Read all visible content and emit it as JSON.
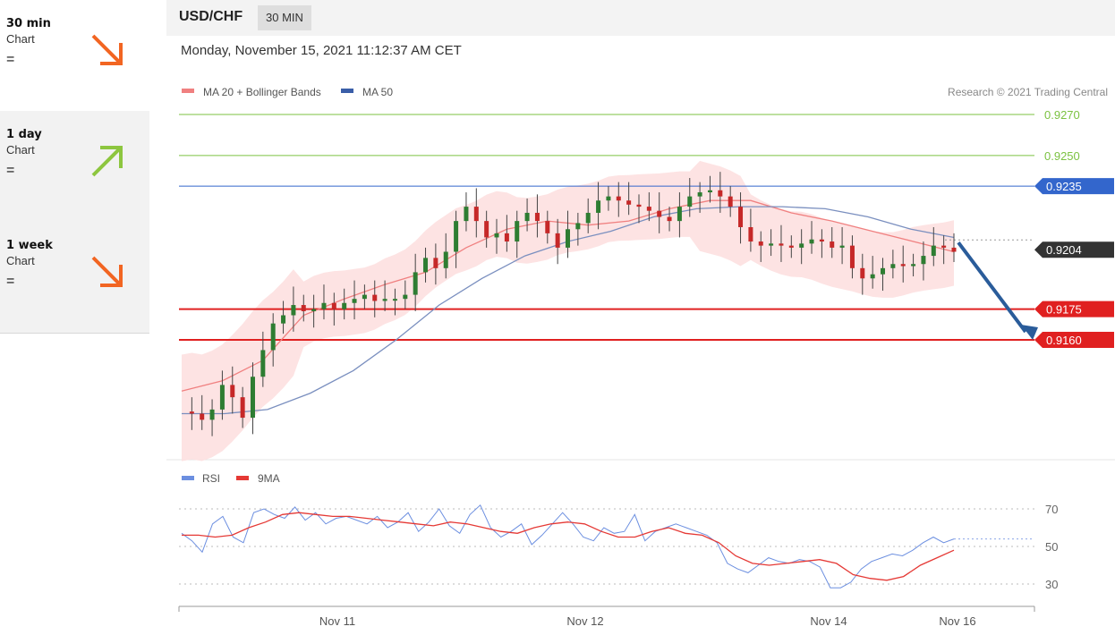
{
  "sidebar": {
    "items": [
      {
        "period": "30 min",
        "label": "Chart",
        "status": "=",
        "arrow": "down",
        "color": "#f26522"
      },
      {
        "period": "1 day",
        "label": "Chart",
        "status": "=",
        "arrow": "up",
        "color": "#8dc63f"
      },
      {
        "period": "1 week",
        "label": "Chart",
        "status": "=",
        "arrow": "down",
        "color": "#f26522"
      }
    ]
  },
  "header": {
    "pair": "USD/CHF",
    "timeframe": "30 MIN"
  },
  "datetime": "Monday, November 15, 2021 11:12:37 AM CET",
  "legend": {
    "item1": "MA 20 + Bollinger Bands",
    "item2": "MA 50",
    "copyright": "Research © 2021 Trading Central"
  },
  "rsi_legend": {
    "item1": "RSI",
    "item2": "9MA"
  },
  "colors": {
    "ma20": "#f08080",
    "bands": "#fde0e0",
    "ma50": "#7a8fbf",
    "bull": "#2e7d32",
    "bear": "#c62828",
    "rsi": "#6c8fe0",
    "rsi_ma": "#e53935",
    "resistance": "#7cc242",
    "pivot": "#3366cc",
    "support": "#e02020",
    "current": "#333333",
    "projection": "#2a5c9a"
  },
  "chart_data": [
    {
      "type": "candlestick",
      "title": "USD/CHF",
      "ylim": [
        0.911,
        0.9285
      ],
      "x_ticks": [
        "Nov 11",
        "Nov 12",
        "Nov 14",
        "Nov 16"
      ],
      "series": [
        {
          "name": "MA 20 + Bollinger Bands",
          "values": [
            0.9135,
            0.914,
            0.915,
            0.9172,
            0.918,
            0.9187,
            0.9193,
            0.9205,
            0.9214,
            0.9218,
            0.9216,
            0.9218,
            0.9224,
            0.9228,
            0.9228,
            0.9222,
            0.9218,
            0.9213,
            0.9208,
            0.9203
          ]
        },
        {
          "name": "MA 50",
          "values": [
            0.9124,
            0.9124,
            0.9126,
            0.9134,
            0.9145,
            0.916,
            0.9177,
            0.919,
            0.9201,
            0.9208,
            0.9213,
            0.922,
            0.9224,
            0.9225,
            0.9225,
            0.9224,
            0.922,
            0.9214,
            0.921
          ]
        }
      ],
      "levels": [
        {
          "label": "0.9270",
          "value": 0.927,
          "type": "resistance"
        },
        {
          "label": "0.9250",
          "value": 0.925,
          "type": "resistance"
        },
        {
          "label": "0.9235",
          "value": 0.9235,
          "type": "pivot"
        },
        {
          "label": "0.9204",
          "value": 0.9204,
          "type": "current"
        },
        {
          "label": "0.9175",
          "value": 0.9175,
          "type": "support"
        },
        {
          "label": "0.9160",
          "value": 0.916,
          "type": "support"
        }
      ],
      "price_path": [
        0.9125,
        0.9124,
        0.9121,
        0.9126,
        0.9138,
        0.9132,
        0.9122,
        0.9142,
        0.9155,
        0.9168,
        0.9172,
        0.9177,
        0.9174,
        0.9175,
        0.9178,
        0.9175,
        0.9178,
        0.918,
        0.9182,
        0.9179,
        0.918,
        0.918,
        0.9182,
        0.9193,
        0.92,
        0.9195,
        0.9203,
        0.9218,
        0.9225,
        0.9218,
        0.921,
        0.9212,
        0.9208,
        0.9218,
        0.9222,
        0.9218,
        0.9212,
        0.9205,
        0.9214,
        0.9217,
        0.9222,
        0.9228,
        0.923,
        0.9228,
        0.9226,
        0.9225,
        0.9223,
        0.922,
        0.9218,
        0.9225,
        0.923,
        0.9232,
        0.9233,
        0.923,
        0.9225,
        0.9215,
        0.9208,
        0.9206,
        0.9207,
        0.9206,
        0.9205,
        0.9207,
        0.9209,
        0.9208,
        0.9205,
        0.9206,
        0.9195,
        0.919,
        0.9192,
        0.9195,
        0.9197,
        0.9196,
        0.9197,
        0.9201,
        0.9206,
        0.9205,
        0.9203
      ],
      "projection": {
        "from": 0.9204,
        "to": 0.916
      }
    },
    {
      "type": "line",
      "title": "RSI",
      "ylim": [
        20,
        80
      ],
      "y_ticks": [
        "70",
        "50",
        "30"
      ],
      "series": [
        {
          "name": "RSI",
          "values": [
            57,
            53,
            47,
            62,
            66,
            55,
            52,
            68,
            70,
            67,
            65,
            71,
            64,
            68,
            62,
            65,
            66,
            64,
            62,
            66,
            60,
            63,
            68,
            58,
            63,
            70,
            61,
            57,
            67,
            72,
            60,
            55,
            58,
            62,
            51,
            56,
            62,
            68,
            62,
            55,
            53,
            60,
            57,
            58,
            67,
            53,
            58,
            60,
            62,
            60,
            58,
            56,
            52,
            41,
            38,
            36,
            40,
            44,
            42,
            41,
            43,
            42,
            39,
            28,
            28,
            31,
            38,
            42,
            44,
            46,
            45,
            48,
            52,
            55,
            52,
            54
          ]
        },
        {
          "name": "9MA",
          "values": [
            56,
            56,
            55,
            56,
            60,
            63,
            67,
            68,
            67,
            66,
            66,
            65,
            64,
            63,
            62,
            61,
            63,
            62,
            60,
            58,
            57,
            60,
            62,
            63,
            62,
            58,
            55,
            55,
            58,
            60,
            57,
            56,
            52,
            45,
            41,
            40,
            41,
            42,
            43,
            41,
            35,
            33,
            32,
            34,
            40,
            44,
            48
          ]
        }
      ]
    }
  ]
}
